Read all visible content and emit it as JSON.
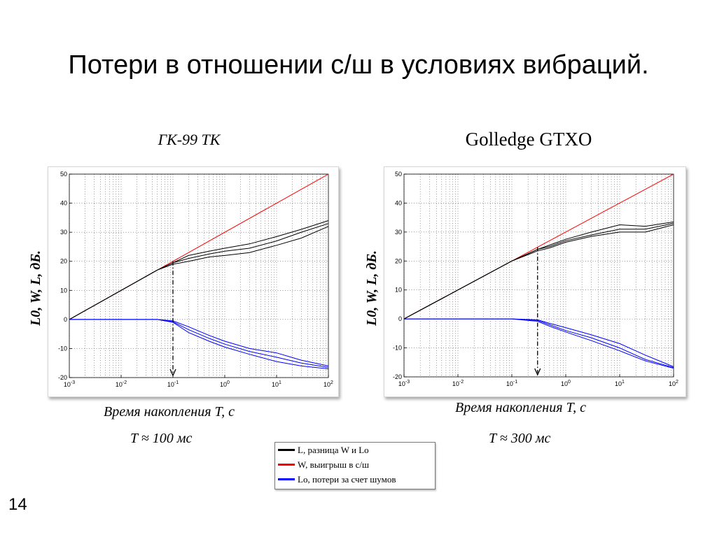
{
  "slide": {
    "title": "Потери в отношении с/ш в условиях вибраций.",
    "page_number": "14"
  },
  "legend": {
    "entries": [
      {
        "label": "L, разница W и Lo",
        "color": "#000000"
      },
      {
        "label": "W, выигрыш в с/ш",
        "color": "#ff0000"
      },
      {
        "label": "Lo, потери за счет шумов",
        "color": "#0000ff"
      }
    ]
  },
  "chart_data": [
    {
      "type": "line",
      "title": "ГК-99 ТК",
      "xlabel": "Время накопления T, с",
      "ylabel": "L0, W, L, дБ.",
      "xscale": "log",
      "xlim": [
        0.001,
        100
      ],
      "ylim": [
        -20,
        50
      ],
      "yticks": [
        -20,
        -10,
        0,
        10,
        20,
        30,
        40,
        50
      ],
      "xticks": [
        {
          "base": "10",
          "exp": "-3"
        },
        {
          "base": "10",
          "exp": "-2"
        },
        {
          "base": "10",
          "exp": "-1"
        },
        {
          "base": "10",
          "exp": "0"
        },
        {
          "base": "10",
          "exp": "1"
        },
        {
          "base": "10",
          "exp": "2"
        }
      ],
      "grid": true,
      "marker_x": 0.1,
      "annotation": "T ≈ 100 мс",
      "colors": {
        "L": "#000000",
        "W": "#ff0000",
        "Lo": "#0000ff"
      },
      "series": [
        {
          "group": "W",
          "x": [
            0.001,
            100
          ],
          "y": [
            0,
            50
          ]
        },
        {
          "group": "L",
          "x": [
            0.001,
            0.01,
            0.05,
            0.1,
            0.2,
            0.5,
            1,
            3,
            10,
            30,
            100
          ],
          "y": [
            0,
            10,
            17,
            19.5,
            22,
            23.5,
            24.5,
            26,
            28.5,
            31,
            34
          ]
        },
        {
          "group": "L",
          "x": [
            0.001,
            0.01,
            0.05,
            0.1,
            0.2,
            0.5,
            1,
            3,
            10,
            30,
            100
          ],
          "y": [
            0,
            10,
            17,
            19.5,
            21,
            22.5,
            23.5,
            24.5,
            27,
            30,
            33
          ]
        },
        {
          "group": "L",
          "x": [
            0.001,
            0.01,
            0.05,
            0.1,
            0.2,
            0.5,
            1,
            3,
            10,
            30,
            100
          ],
          "y": [
            0,
            10,
            17,
            19,
            20,
            21.5,
            22,
            23,
            25.5,
            28,
            32
          ]
        },
        {
          "group": "Lo",
          "x": [
            0.001,
            0.01,
            0.05,
            0.1,
            0.2,
            0.5,
            1,
            3,
            10,
            30,
            100
          ],
          "y": [
            0,
            0,
            0,
            -0.5,
            -2.5,
            -5.5,
            -7.5,
            -10,
            -11.5,
            -14,
            -16
          ]
        },
        {
          "group": "Lo",
          "x": [
            0.001,
            0.01,
            0.05,
            0.1,
            0.2,
            0.5,
            1,
            3,
            10,
            30,
            100
          ],
          "y": [
            0,
            0,
            0,
            -0.8,
            -3.5,
            -6.5,
            -8.5,
            -11,
            -13,
            -15,
            -16.5
          ]
        },
        {
          "group": "Lo",
          "x": [
            0.001,
            0.01,
            0.05,
            0.1,
            0.2,
            0.5,
            1,
            3,
            10,
            30,
            100
          ],
          "y": [
            0,
            0,
            0,
            -1,
            -4.5,
            -7.5,
            -9.5,
            -12,
            -14.5,
            -16,
            -17
          ]
        }
      ]
    },
    {
      "type": "line",
      "title": "Golledge GTXO",
      "xlabel": "Время накопления T, с",
      "ylabel": "L0, W, L, дБ.",
      "xscale": "log",
      "xlim": [
        0.001,
        100
      ],
      "ylim": [
        -20,
        50
      ],
      "yticks": [
        -20,
        -10,
        0,
        10,
        20,
        30,
        40,
        50
      ],
      "xticks": [
        {
          "base": "10",
          "exp": "-3"
        },
        {
          "base": "10",
          "exp": "-2"
        },
        {
          "base": "10",
          "exp": "-1"
        },
        {
          "base": "10",
          "exp": "0"
        },
        {
          "base": "10",
          "exp": "1"
        },
        {
          "base": "10",
          "exp": "2"
        }
      ],
      "grid": true,
      "marker_x": 0.3,
      "annotation": "T ≈ 300 мс",
      "colors": {
        "L": "#000000",
        "W": "#ff0000",
        "Lo": "#0000ff"
      },
      "series": [
        {
          "group": "W",
          "x": [
            0.001,
            100
          ],
          "y": [
            0,
            50
          ]
        },
        {
          "group": "L",
          "x": [
            0.001,
            0.01,
            0.1,
            0.3,
            0.5,
            1,
            3,
            10,
            30,
            100
          ],
          "y": [
            0,
            10,
            20,
            24,
            25.5,
            27.5,
            30,
            32.5,
            32,
            33.5
          ]
        },
        {
          "group": "L",
          "x": [
            0.001,
            0.01,
            0.1,
            0.3,
            0.5,
            1,
            3,
            10,
            30,
            100
          ],
          "y": [
            0,
            10,
            20,
            24,
            25,
            27,
            29,
            31,
            31,
            33
          ]
        },
        {
          "group": "L",
          "x": [
            0.001,
            0.01,
            0.1,
            0.3,
            0.5,
            1,
            3,
            10,
            30,
            100
          ],
          "y": [
            0,
            10,
            20,
            23.5,
            24.5,
            26.5,
            28.5,
            30,
            30,
            32.5
          ]
        },
        {
          "group": "Lo",
          "x": [
            0.001,
            0.01,
            0.1,
            0.3,
            0.5,
            1,
            3,
            10,
            30,
            100
          ],
          "y": [
            0,
            0,
            0,
            -0.3,
            -1.5,
            -3,
            -5.5,
            -8.5,
            -12.5,
            -16.5
          ]
        },
        {
          "group": "Lo",
          "x": [
            0.001,
            0.01,
            0.1,
            0.3,
            0.5,
            1,
            3,
            10,
            30,
            100
          ],
          "y": [
            0,
            0,
            0,
            -0.5,
            -2,
            -4,
            -6.5,
            -10,
            -14,
            -16.8
          ]
        },
        {
          "group": "Lo",
          "x": [
            0.001,
            0.01,
            0.1,
            0.3,
            0.5,
            1,
            3,
            10,
            30,
            100
          ],
          "y": [
            0,
            0,
            0,
            -0.8,
            -2.5,
            -4.5,
            -7.5,
            -11,
            -14.5,
            -17
          ]
        }
      ]
    }
  ]
}
